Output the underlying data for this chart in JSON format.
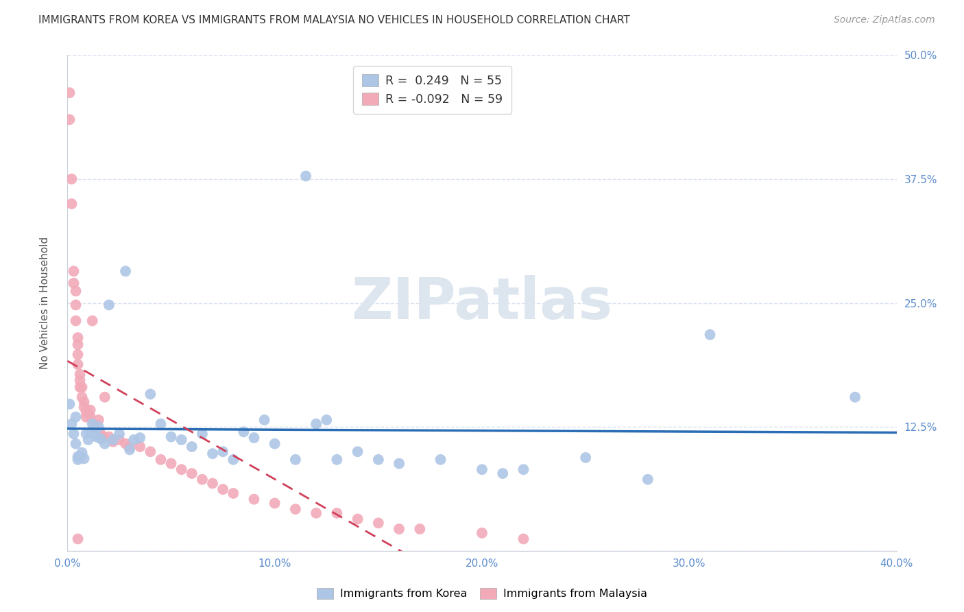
{
  "title": "IMMIGRANTS FROM KOREA VS IMMIGRANTS FROM MALAYSIA NO VEHICLES IN HOUSEHOLD CORRELATION CHART",
  "source": "Source: ZipAtlas.com",
  "ylabel": "No Vehicles in Household",
  "korea_R": 0.249,
  "korea_N": 55,
  "malaysia_R": -0.092,
  "malaysia_N": 59,
  "korea_color": "#adc6e5",
  "malaysia_color": "#f2aab8",
  "korea_line_color": "#2a6db5",
  "malaysia_line_color": "#d0405a",
  "background_color": "#ffffff",
  "grid_color": "#d8e0ee",
  "axis_label_color": "#5b8ccc",
  "watermark_color": "#dde5ef",
  "xlim": [
    0.0,
    0.4
  ],
  "ylim": [
    0.0,
    0.5
  ],
  "korea_x": [
    0.001,
    0.002,
    0.003,
    0.004,
    0.004,
    0.005,
    0.005,
    0.006,
    0.007,
    0.008,
    0.009,
    0.01,
    0.011,
    0.012,
    0.013,
    0.014,
    0.015,
    0.016,
    0.018,
    0.02,
    0.022,
    0.025,
    0.028,
    0.03,
    0.032,
    0.035,
    0.04,
    0.045,
    0.05,
    0.055,
    0.06,
    0.065,
    0.07,
    0.075,
    0.08,
    0.085,
    0.09,
    0.095,
    0.1,
    0.11,
    0.115,
    0.12,
    0.125,
    0.13,
    0.14,
    0.15,
    0.16,
    0.18,
    0.2,
    0.21,
    0.22,
    0.25,
    0.28,
    0.31,
    0.38
  ],
  "korea_y": [
    0.148,
    0.128,
    0.118,
    0.135,
    0.108,
    0.095,
    0.092,
    0.095,
    0.099,
    0.093,
    0.118,
    0.112,
    0.12,
    0.128,
    0.118,
    0.115,
    0.125,
    0.113,
    0.108,
    0.248,
    0.112,
    0.118,
    0.282,
    0.102,
    0.112,
    0.114,
    0.158,
    0.128,
    0.115,
    0.112,
    0.105,
    0.118,
    0.098,
    0.1,
    0.092,
    0.12,
    0.114,
    0.132,
    0.108,
    0.092,
    0.378,
    0.128,
    0.132,
    0.092,
    0.1,
    0.092,
    0.088,
    0.092,
    0.082,
    0.078,
    0.082,
    0.094,
    0.072,
    0.218,
    0.155
  ],
  "malaysia_x": [
    0.001,
    0.001,
    0.002,
    0.002,
    0.003,
    0.003,
    0.004,
    0.004,
    0.004,
    0.005,
    0.005,
    0.005,
    0.005,
    0.006,
    0.006,
    0.006,
    0.007,
    0.007,
    0.008,
    0.008,
    0.009,
    0.009,
    0.01,
    0.011,
    0.011,
    0.012,
    0.013,
    0.014,
    0.015,
    0.016,
    0.017,
    0.018,
    0.02,
    0.022,
    0.025,
    0.028,
    0.03,
    0.035,
    0.04,
    0.045,
    0.05,
    0.055,
    0.06,
    0.065,
    0.07,
    0.075,
    0.08,
    0.09,
    0.1,
    0.11,
    0.12,
    0.13,
    0.14,
    0.15,
    0.16,
    0.17,
    0.2,
    0.22,
    0.005
  ],
  "malaysia_y": [
    0.462,
    0.435,
    0.375,
    0.35,
    0.282,
    0.27,
    0.262,
    0.248,
    0.232,
    0.215,
    0.208,
    0.198,
    0.188,
    0.178,
    0.172,
    0.165,
    0.165,
    0.155,
    0.15,
    0.145,
    0.14,
    0.135,
    0.138,
    0.135,
    0.142,
    0.232,
    0.128,
    0.122,
    0.132,
    0.118,
    0.115,
    0.155,
    0.115,
    0.11,
    0.112,
    0.108,
    0.105,
    0.105,
    0.1,
    0.092,
    0.088,
    0.082,
    0.078,
    0.072,
    0.068,
    0.062,
    0.058,
    0.052,
    0.048,
    0.042,
    0.038,
    0.038,
    0.032,
    0.028,
    0.022,
    0.022,
    0.018,
    0.012,
    0.012
  ]
}
